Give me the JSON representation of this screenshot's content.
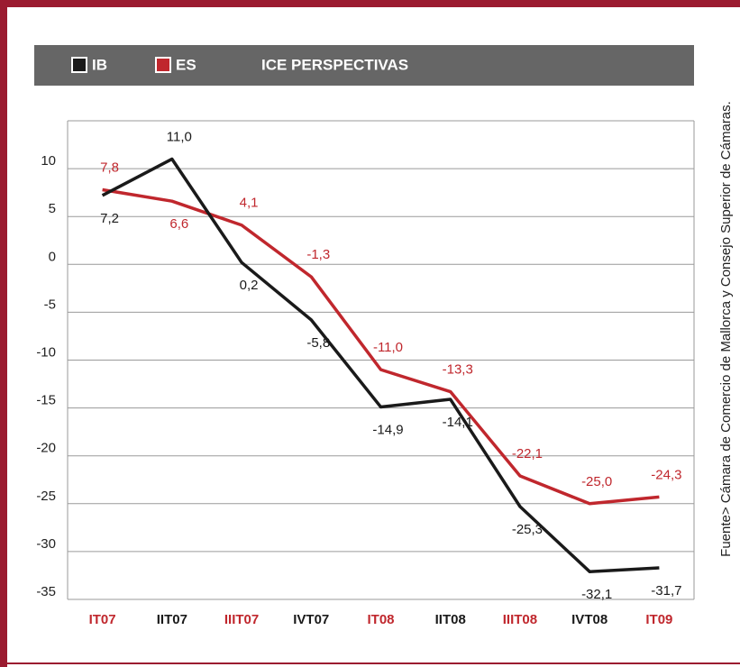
{
  "chart_data": {
    "type": "line",
    "legend_title": "ICE PERSPECTIVAS",
    "source": "Fuente> Cámara de Comercio de Mallorca y Consejo Superior de Cámaras.",
    "categories": [
      "IT07",
      "IIT07",
      "IIIT07",
      "IVT07",
      "IT08",
      "IIT08",
      "IIIT08",
      "IVT08",
      "IT09"
    ],
    "category_colors": [
      "#c0272d",
      "#1a1a1a",
      "#c0272d",
      "#1a1a1a",
      "#c0272d",
      "#1a1a1a",
      "#c0272d",
      "#1a1a1a",
      "#c0272d"
    ],
    "series": [
      {
        "name": "IB",
        "color": "#1a1a1a",
        "values": [
          7.2,
          11.0,
          0.2,
          -5.8,
          -14.9,
          -14.1,
          -25.3,
          -32.1,
          -31.7
        ],
        "value_labels": [
          "7,2",
          "11,0",
          "0,2",
          "-5,8",
          "-14,9",
          "-14,1",
          "-25,3",
          "-32,1",
          "-31,7"
        ]
      },
      {
        "name": "ES",
        "color": "#c0272d",
        "values": [
          7.8,
          6.6,
          4.1,
          -1.3,
          -11.0,
          -13.3,
          -22.1,
          -25.0,
          -24.3
        ],
        "value_labels": [
          "7,8",
          "6,6",
          "4,1",
          "-1,3",
          "-11,0",
          "-13,3",
          "-22,1",
          "-25,0",
          "-24,3"
        ]
      }
    ],
    "ylim": [
      -35,
      15
    ],
    "yticks": [
      -35,
      -30,
      -25,
      -20,
      -15,
      -10,
      -5,
      0,
      5,
      10
    ],
    "grid": true
  }
}
